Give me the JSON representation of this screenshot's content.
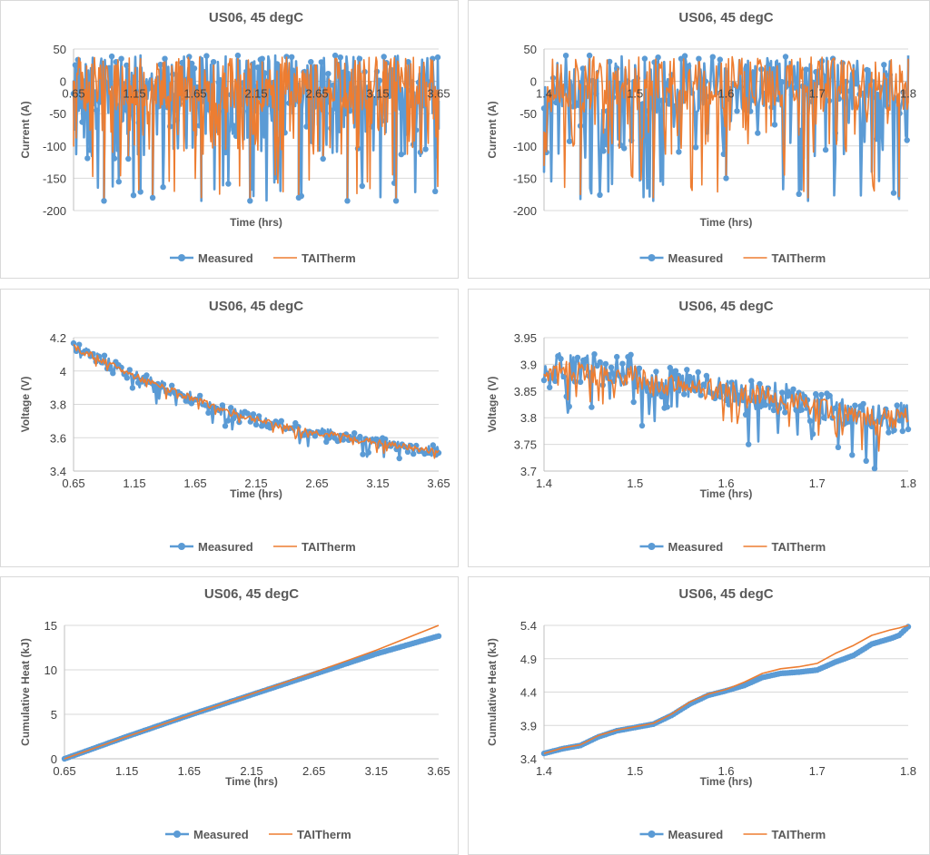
{
  "colors": {
    "measured": "#5b9bd5",
    "taitherm": "#ed7d31",
    "grid": "#d9d9d9",
    "axis": "#bfbfbf"
  },
  "chart_data": [
    {
      "id": "current-full",
      "type": "line",
      "title": "US06, 45 degC",
      "xlabel": "Time (hrs)",
      "ylabel": "Current (A)",
      "xlim": [
        0.65,
        3.65
      ],
      "ylim": [
        -200,
        50
      ],
      "xticks": [
        0.65,
        1.15,
        1.65,
        2.15,
        2.65,
        3.15,
        3.65
      ],
      "yticks": [
        50,
        0,
        -50,
        -100,
        -150,
        -200
      ],
      "xtick_labels": [
        "0.65",
        "1.15",
        "1.65",
        "2.15",
        "2.65",
        "3.15",
        "3.65"
      ],
      "ytick_labels": [
        "50",
        "0",
        "-50",
        "-100",
        "-150",
        "-200"
      ],
      "x_axis_at_zero": true,
      "grid": "horizontal",
      "legend": "bottom",
      "pattern": "current",
      "series": [
        {
          "name": "Measured",
          "style": "line-with-markers",
          "x": [
            0.65,
            0.7,
            0.8,
            0.9,
            1.0,
            1.1,
            1.2,
            1.3,
            1.4,
            1.5,
            1.6,
            1.7,
            1.8,
            1.9,
            2.0,
            2.1,
            2.2,
            2.3,
            2.4,
            2.5,
            2.6,
            2.7,
            2.8,
            2.9,
            3.0,
            3.1,
            3.2,
            3.3,
            3.4,
            3.5,
            3.6,
            3.65
          ],
          "y": [
            0,
            35,
            -45,
            -185,
            30,
            -120,
            40,
            -180,
            35,
            -60,
            38,
            -185,
            30,
            -110,
            40,
            -185,
            35,
            -60,
            38,
            -180,
            30,
            -120,
            40,
            -185,
            35,
            -70,
            38,
            -185,
            30,
            -110,
            35,
            -30
          ]
        },
        {
          "name": "TAITherm",
          "style": "line",
          "x": [
            0.65,
            0.7,
            0.8,
            0.9,
            1.0,
            1.1,
            1.2,
            1.3,
            1.4,
            1.5,
            1.6,
            1.7,
            1.8,
            1.9,
            2.0,
            2.1,
            2.2,
            2.3,
            2.4,
            2.5,
            2.6,
            2.7,
            2.8,
            2.9,
            3.0,
            3.1,
            3.2,
            3.3,
            3.4,
            3.5,
            3.6,
            3.65
          ],
          "y": [
            0,
            30,
            -40,
            -180,
            25,
            -115,
            35,
            -175,
            30,
            -55,
            33,
            -180,
            25,
            -105,
            35,
            -180,
            30,
            -55,
            33,
            -175,
            25,
            -115,
            35,
            -180,
            30,
            -65,
            33,
            -180,
            25,
            -105,
            30,
            -25
          ]
        }
      ]
    },
    {
      "id": "current-zoom",
      "type": "line",
      "title": "US06, 45 degC",
      "xlabel": "Time (hrs)",
      "ylabel": "Current (A)",
      "xlim": [
        1.4,
        1.8
      ],
      "ylim": [
        -200,
        50
      ],
      "xticks": [
        1.4,
        1.5,
        1.6,
        1.7,
        1.8
      ],
      "yticks": [
        50,
        0,
        -50,
        -100,
        -150,
        -200
      ],
      "xtick_labels": [
        "1.4",
        "1.5",
        "1.6",
        "1.7",
        "1.8"
      ],
      "ytick_labels": [
        "50",
        "0",
        "-50",
        "-100",
        "-150",
        "-200"
      ],
      "x_axis_at_zero": true,
      "grid": "horizontal",
      "legend": "bottom",
      "pattern": "current",
      "series": [
        {
          "name": "Measured",
          "style": "line-with-markers",
          "x": [
            1.4,
            1.41,
            1.42,
            1.44,
            1.45,
            1.47,
            1.5,
            1.52,
            1.54,
            1.55,
            1.57,
            1.6,
            1.62,
            1.65,
            1.67,
            1.69,
            1.7,
            1.72,
            1.74,
            1.76,
            1.78,
            1.79,
            1.8
          ],
          "y": [
            -140,
            5,
            -20,
            -182,
            40,
            -60,
            25,
            -185,
            10,
            -90,
            35,
            -150,
            20,
            -40,
            30,
            -185,
            15,
            -80,
            25,
            -140,
            10,
            -182,
            40
          ]
        },
        {
          "name": "TAITherm",
          "style": "line",
          "x": [
            1.4,
            1.41,
            1.42,
            1.44,
            1.45,
            1.47,
            1.5,
            1.52,
            1.54,
            1.55,
            1.57,
            1.6,
            1.62,
            1.65,
            1.67,
            1.69,
            1.7,
            1.72,
            1.74,
            1.76,
            1.78,
            1.79,
            1.8
          ],
          "y": [
            -130,
            0,
            -25,
            -175,
            35,
            -55,
            20,
            -180,
            5,
            -85,
            30,
            -145,
            15,
            -35,
            25,
            -180,
            10,
            -75,
            20,
            -135,
            5,
            -178,
            35
          ]
        }
      ]
    },
    {
      "id": "voltage-full",
      "type": "line",
      "title": "US06, 45 degC",
      "xlabel": "Time (hrs)",
      "ylabel": "Voltage (V)",
      "xlim": [
        0.65,
        3.65
      ],
      "ylim": [
        3.4,
        4.2
      ],
      "xticks": [
        0.65,
        1.15,
        1.65,
        2.15,
        2.65,
        3.15,
        3.65
      ],
      "yticks": [
        4.2,
        4,
        3.8,
        3.6,
        3.4
      ],
      "xtick_labels": [
        "0.65",
        "1.15",
        "1.65",
        "2.15",
        "2.65",
        "3.15",
        "3.65"
      ],
      "ytick_labels": [
        "4.2",
        "4",
        "3.8",
        "3.6",
        "3.4"
      ],
      "grid": "horizontal",
      "legend": "bottom",
      "pattern": "noisy-trend",
      "series": [
        {
          "name": "Measured",
          "style": "line-with-markers",
          "x": [
            0.65,
            0.75,
            1.0,
            1.25,
            1.5,
            1.75,
            2.0,
            2.25,
            2.5,
            2.75,
            3.0,
            3.25,
            3.5,
            3.65
          ],
          "y": [
            4.15,
            4.12,
            4.02,
            3.94,
            3.87,
            3.8,
            3.74,
            3.69,
            3.65,
            3.62,
            3.59,
            3.56,
            3.53,
            3.52
          ],
          "band": 0.035
        },
        {
          "name": "TAITherm",
          "style": "line",
          "x": [
            0.65,
            0.75,
            1.0,
            1.25,
            1.5,
            1.75,
            2.0,
            2.25,
            2.5,
            2.75,
            3.0,
            3.25,
            3.5,
            3.65
          ],
          "y": [
            4.14,
            4.11,
            4.02,
            3.94,
            3.87,
            3.8,
            3.74,
            3.69,
            3.65,
            3.62,
            3.59,
            3.56,
            3.53,
            3.52
          ],
          "band": 0.02
        }
      ]
    },
    {
      "id": "voltage-zoom",
      "type": "line",
      "title": "US06, 45 degC",
      "xlabel": "Time (hrs)",
      "ylabel": "Voltage (V)",
      "xlim": [
        1.4,
        1.8
      ],
      "ylim": [
        3.7,
        3.95
      ],
      "xticks": [
        1.4,
        1.5,
        1.6,
        1.7,
        1.8
      ],
      "yticks": [
        3.95,
        3.9,
        3.85,
        3.8,
        3.75,
        3.7
      ],
      "xtick_labels": [
        "1.4",
        "1.5",
        "1.6",
        "1.7",
        "1.8"
      ],
      "ytick_labels": [
        "3.95",
        "3.9",
        "3.85",
        "3.8",
        "3.75",
        "3.7"
      ],
      "grid": "horizontal",
      "legend": "bottom",
      "pattern": "noisy-trend",
      "series": [
        {
          "name": "Measured",
          "style": "line-with-markers",
          "x": [
            1.4,
            1.42,
            1.45,
            1.5,
            1.52,
            1.55,
            1.6,
            1.65,
            1.7,
            1.75,
            1.8
          ],
          "y": [
            3.88,
            3.9,
            3.89,
            3.89,
            3.86,
            3.87,
            3.85,
            3.84,
            3.82,
            3.8,
            3.8
          ],
          "band": 0.03
        },
        {
          "name": "TAITherm",
          "style": "line",
          "x": [
            1.4,
            1.42,
            1.45,
            1.5,
            1.52,
            1.55,
            1.6,
            1.65,
            1.7,
            1.75,
            1.8
          ],
          "y": [
            3.88,
            3.89,
            3.88,
            3.88,
            3.86,
            3.86,
            3.85,
            3.84,
            3.82,
            3.8,
            3.8
          ],
          "band": 0.02
        }
      ]
    },
    {
      "id": "heat-full",
      "type": "line",
      "title": "US06, 45 degC",
      "xlabel": "Time (hrs)",
      "ylabel": "Cumulative Heat (kJ)",
      "xlim": [
        0.65,
        3.65
      ],
      "ylim": [
        0,
        15
      ],
      "xticks": [
        0.65,
        1.15,
        1.65,
        2.15,
        2.65,
        3.15,
        3.65
      ],
      "yticks": [
        15,
        10,
        5,
        0
      ],
      "xtick_labels": [
        "0.65",
        "1.15",
        "1.65",
        "2.15",
        "2.65",
        "3.15",
        "3.65"
      ],
      "ytick_labels": [
        "15",
        "10",
        "5",
        "0"
      ],
      "grid": "horizontal",
      "legend": "bottom",
      "pattern": "smooth",
      "series": [
        {
          "name": "Measured",
          "style": "line-with-markers",
          "x": [
            0.65,
            1.15,
            1.65,
            2.15,
            2.65,
            3.15,
            3.65
          ],
          "y": [
            0,
            2.5,
            4.9,
            7.2,
            9.5,
            11.8,
            13.8
          ]
        },
        {
          "name": "TAITherm",
          "style": "line",
          "x": [
            0.65,
            1.15,
            1.65,
            2.15,
            2.65,
            3.15,
            3.65
          ],
          "y": [
            0,
            2.5,
            4.9,
            7.3,
            9.7,
            12.2,
            15.0
          ]
        }
      ]
    },
    {
      "id": "heat-zoom",
      "type": "line",
      "title": "US06, 45 degC",
      "xlabel": "Time (hrs)",
      "ylabel": "Cumulative Heat (kJ)",
      "xlim": [
        1.4,
        1.8
      ],
      "ylim": [
        3.4,
        5.4
      ],
      "xticks": [
        1.4,
        1.5,
        1.6,
        1.7,
        1.8
      ],
      "yticks": [
        5.4,
        4.9,
        4.4,
        3.9,
        3.4
      ],
      "xtick_labels": [
        "1.4",
        "1.5",
        "1.6",
        "1.7",
        "1.8"
      ],
      "ytick_labels": [
        "5.4",
        "4.9",
        "4.4",
        "3.9",
        "3.4"
      ],
      "grid": "horizontal",
      "legend": "bottom",
      "pattern": "smooth",
      "series": [
        {
          "name": "Measured",
          "style": "line-with-markers",
          "x": [
            1.4,
            1.42,
            1.44,
            1.46,
            1.48,
            1.5,
            1.52,
            1.54,
            1.56,
            1.58,
            1.6,
            1.62,
            1.64,
            1.66,
            1.68,
            1.7,
            1.72,
            1.74,
            1.76,
            1.78,
            1.79,
            1.8
          ],
          "y": [
            3.48,
            3.55,
            3.6,
            3.73,
            3.82,
            3.87,
            3.92,
            4.05,
            4.22,
            4.35,
            4.42,
            4.5,
            4.62,
            4.68,
            4.7,
            4.73,
            4.85,
            4.95,
            5.12,
            5.2,
            5.25,
            5.38
          ]
        },
        {
          "name": "TAITherm",
          "style": "line",
          "x": [
            1.4,
            1.42,
            1.44,
            1.46,
            1.48,
            1.5,
            1.52,
            1.54,
            1.56,
            1.58,
            1.6,
            1.62,
            1.64,
            1.66,
            1.68,
            1.7,
            1.72,
            1.74,
            1.76,
            1.78,
            1.79,
            1.8
          ],
          "y": [
            3.48,
            3.56,
            3.61,
            3.75,
            3.83,
            3.88,
            3.93,
            4.07,
            4.25,
            4.37,
            4.44,
            4.55,
            4.68,
            4.75,
            4.78,
            4.83,
            4.98,
            5.1,
            5.25,
            5.33,
            5.36,
            5.4
          ]
        }
      ]
    }
  ]
}
